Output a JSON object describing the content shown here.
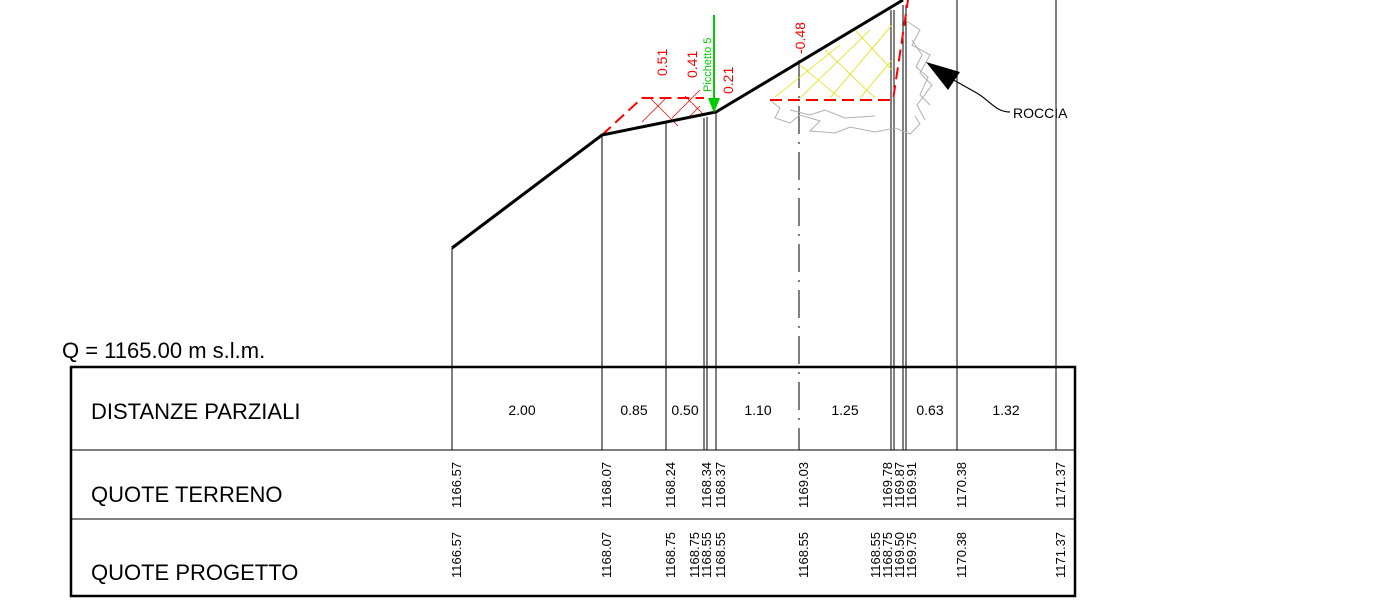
{
  "datum": "Q =  1165.00  m s.l.m.",
  "rows": {
    "distanze": "DISTANZE PARZIALI",
    "terreno": "QUOTE TERRENO",
    "progetto": "QUOTE PROGETTO"
  },
  "distanze": [
    "2.00",
    "0.85",
    "0.50",
    "1.10",
    "1.25",
    "0.63",
    "1.32"
  ],
  "quote_terreno": [
    "1166.57",
    "1168.07",
    "1168.24",
    "1168.34",
    "1168.37",
    "1169.03",
    "1169.78",
    "1169.87",
    "1169.91",
    "1170.38",
    "1171.37"
  ],
  "quote_progetto": [
    "1166.57",
    "1168.07",
    "1168.75",
    "1168.75",
    "1168.55",
    "1168.55",
    "1168.55",
    "1168.55",
    "1168.75",
    "1169.50",
    "1169.75",
    "1170.38",
    "1171.37"
  ],
  "depth_labels": [
    "0.51",
    "0.41",
    "0.21",
    "-0.48"
  ],
  "picchetto": "Picchetto 5",
  "roccia": "ROCCIA",
  "colors": {
    "fill_red": "#ff0000",
    "fill_yellow": "#e0e000",
    "picchetto_green": "#00cc00",
    "rock_gray": "#b0b0b0"
  }
}
